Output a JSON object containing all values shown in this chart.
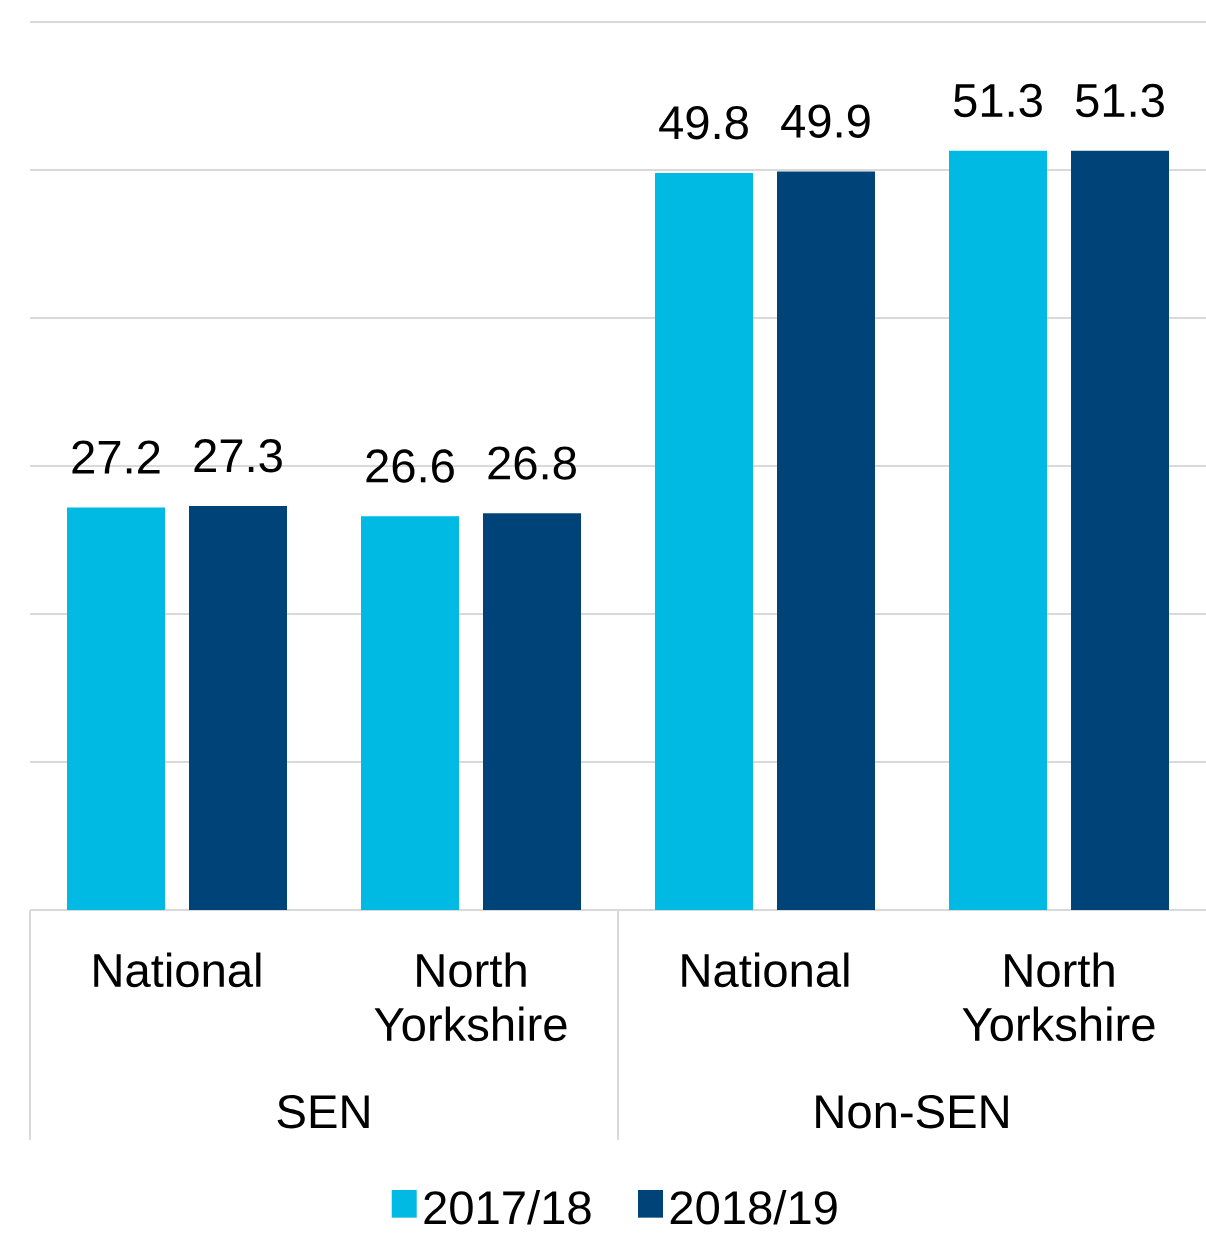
{
  "chart_data": {
    "type": "bar",
    "categories": [
      "National",
      "North Yorkshire",
      "National",
      "North Yorkshire"
    ],
    "series": [
      {
        "name": "2017/18",
        "color": "#00bae3",
        "values": [
          27.2,
          26.6,
          49.8,
          51.3
        ]
      },
      {
        "name": "2018/19",
        "color": "#004379",
        "values": [
          27.3,
          26.8,
          49.9,
          51.3
        ]
      }
    ],
    "ylim": [
      0,
      60
    ],
    "yticks": [
      {
        "value": 0,
        "label": null
      },
      {
        "value": 10,
        "label": null
      },
      {
        "value": 20,
        "label": null
      },
      {
        "value": 30,
        "label": null
      },
      {
        "value": 40,
        "label": null
      },
      {
        "value": 50,
        "label": null
      },
      {
        "value": 60,
        "label": null
      }
    ],
    "grid": "y",
    "tick_labels": "x",
    "data_labels": true,
    "legend": "bottom",
    "annotations": [
      "SEN",
      "Non-SEN"
    ]
  }
}
